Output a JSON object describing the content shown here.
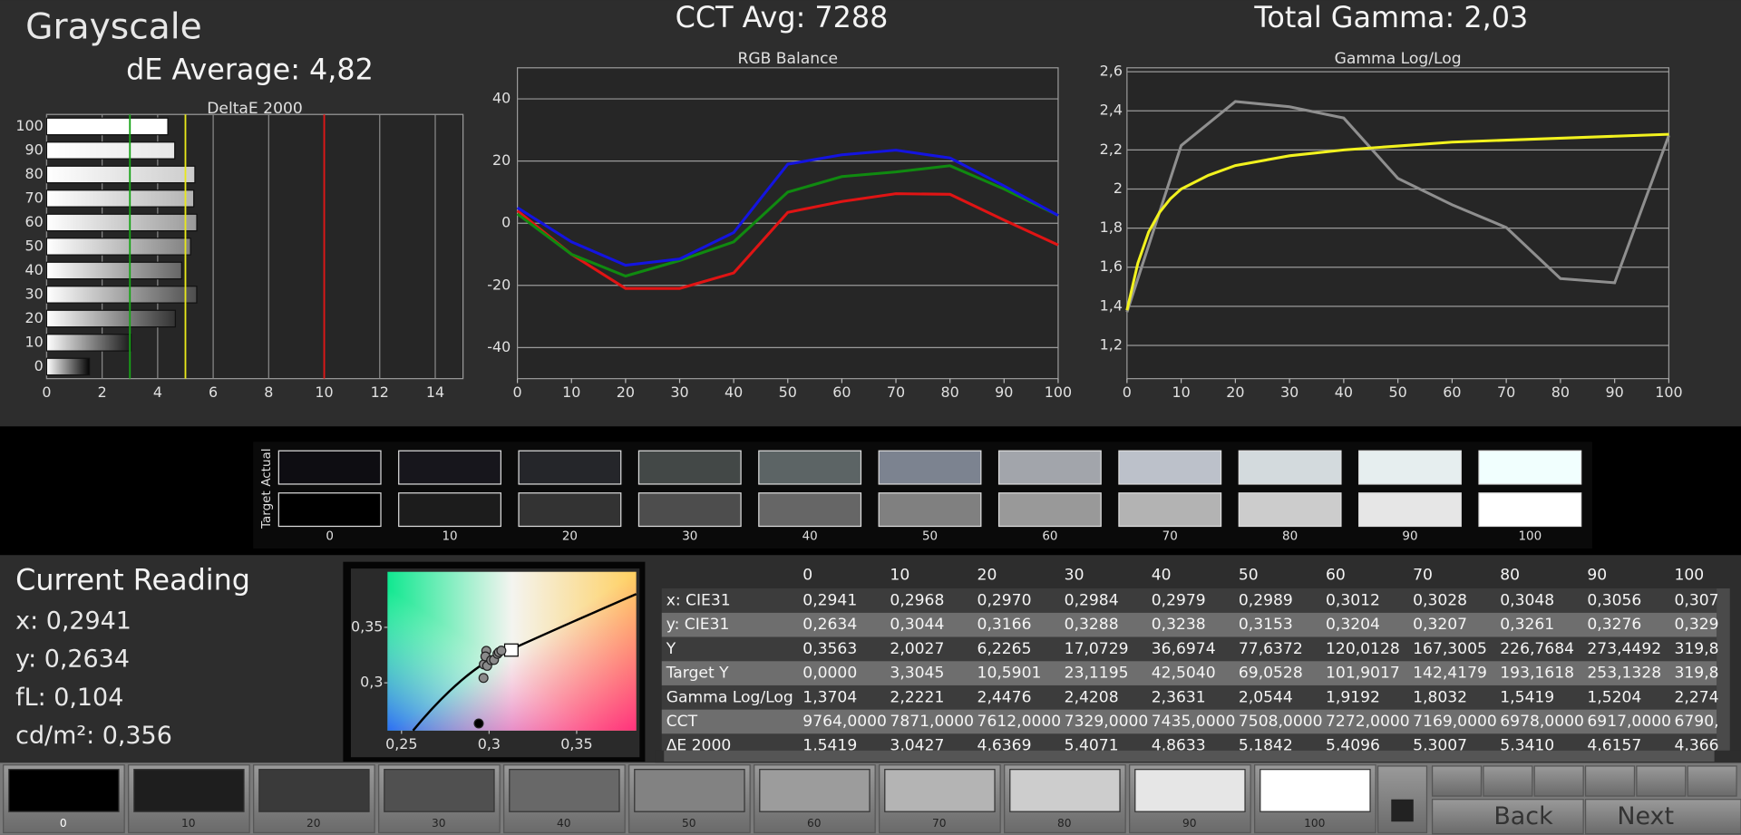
{
  "header": {
    "title": "Grayscale",
    "de_average": "dE Average: 4,82",
    "cct_avg": "CCT Avg: 7288",
    "total_gamma": "Total Gamma: 2,03"
  },
  "chart_data": [
    {
      "type": "bar",
      "orientation": "horizontal",
      "title": "DeltaE 2000",
      "categories": [
        "0",
        "10",
        "20",
        "30",
        "40",
        "50",
        "60",
        "70",
        "80",
        "90",
        "100"
      ],
      "values": [
        1.5419,
        3.0427,
        4.6369,
        5.4071,
        4.8633,
        5.1842,
        5.4096,
        5.3007,
        5.341,
        4.6157,
        4.366
      ],
      "colors": [
        "#050505",
        "#1a1a1a",
        "#333333",
        "#4d4d4d",
        "#666666",
        "#808080",
        "#999999",
        "#b3b3b3",
        "#cccccc",
        "#e6e6e6",
        "#ffffff"
      ],
      "xlim": [
        0,
        15
      ],
      "xticks": [
        0,
        2,
        4,
        6,
        8,
        10,
        12,
        14
      ],
      "reference_lines": [
        {
          "value": 3,
          "color": "#17a317"
        },
        {
          "value": 5,
          "color": "#e8e81a"
        },
        {
          "value": 10,
          "color": "#e01616"
        }
      ],
      "grid": true
    },
    {
      "type": "line",
      "title": "RGB Balance",
      "x": [
        0,
        10,
        20,
        30,
        40,
        50,
        60,
        70,
        80,
        90,
        100
      ],
      "series": [
        {
          "color": "#e01414",
          "values": [
            4,
            -10,
            -21,
            -21,
            -16,
            3.5,
            7,
            9.5,
            9.3,
            1,
            -7
          ]
        },
        {
          "color": "#108a10",
          "values": [
            3,
            -10,
            -17,
            -12,
            -6,
            10,
            15,
            16.5,
            18.5,
            11,
            2.5
          ]
        },
        {
          "color": "#1414e0",
          "values": [
            5,
            -6,
            -13.5,
            -11.5,
            -3,
            19,
            22,
            23.5,
            21,
            12,
            2.5
          ]
        }
      ],
      "xlim": [
        0,
        100
      ],
      "xticks": [
        0,
        10,
        20,
        30,
        40,
        50,
        60,
        70,
        80,
        90,
        100
      ],
      "ylim": [
        -50,
        50
      ],
      "yticks": [
        -40,
        -20,
        0,
        20,
        40
      ],
      "grid": true
    },
    {
      "type": "line",
      "title": "Gamma Log/Log",
      "x": [
        0,
        10,
        20,
        30,
        40,
        50,
        60,
        70,
        80,
        90,
        100
      ],
      "series": [
        {
          "color": "#8f8f8f",
          "values": [
            1.3704,
            2.2221,
            2.4476,
            2.4208,
            2.3631,
            2.0544,
            1.9192,
            1.8032,
            1.5419,
            1.5204,
            2.274
          ]
        },
        {
          "color": "#f2f21e",
          "x": [
            0,
            2,
            4,
            6,
            8,
            10,
            15,
            20,
            30,
            40,
            50,
            60,
            70,
            80,
            90,
            100
          ],
          "values": [
            1.38,
            1.62,
            1.78,
            1.88,
            1.95,
            2.0,
            2.07,
            2.12,
            2.17,
            2.2,
            2.22,
            2.24,
            2.25,
            2.26,
            2.27,
            2.28
          ]
        }
      ],
      "xlim": [
        0,
        100
      ],
      "xticks": [
        0,
        10,
        20,
        30,
        40,
        50,
        60,
        70,
        80,
        90,
        100
      ],
      "ylim": [
        1.03,
        2.62
      ],
      "yticks": [
        {
          "value": 1.2,
          "label": "1,2"
        },
        {
          "value": 1.4,
          "label": "1,4"
        },
        {
          "value": 1.6,
          "label": "1,6"
        },
        {
          "value": 1.8,
          "label": "1,8"
        },
        2,
        {
          "value": 2.2,
          "label": "2,2"
        },
        {
          "value": 2.4,
          "label": "2,4"
        },
        {
          "value": 2.6,
          "label": "2,6"
        }
      ],
      "grid": true
    },
    {
      "type": "scatter",
      "x": [
        0.2941,
        0.2968,
        0.297,
        0.2984,
        0.2979,
        0.2989,
        0.3012,
        0.3028,
        0.3048,
        0.3056,
        0.307
      ],
      "values": [
        0.2634,
        0.3044,
        0.3166,
        0.3288,
        0.3238,
        0.3153,
        0.3204,
        0.3207,
        0.3261,
        0.3276,
        0.329
      ],
      "xlim": [
        0.242,
        0.384
      ],
      "ylim": [
        0.257,
        0.4
      ],
      "xticks": [
        {
          "value": 0.25,
          "label": "0,25"
        },
        {
          "value": 0.3,
          "label": "0,3"
        },
        {
          "value": 0.35,
          "label": "0,35"
        }
      ],
      "yticks": [
        {
          "value": 0.3,
          "label": "0,3"
        },
        {
          "value": 0.35,
          "label": "0,35"
        }
      ]
    }
  ],
  "swatches": {
    "actual_label": "Actual",
    "target_label": "Target",
    "levels": [
      "0",
      "10",
      "20",
      "30",
      "40",
      "50",
      "60",
      "70",
      "80",
      "90",
      "100"
    ],
    "actual_colors": [
      "#0e0d12",
      "#17161c",
      "#25262a",
      "#434847",
      "#5c6465",
      "#7c8390",
      "#a2a5ab",
      "#bcc1ca",
      "#d3dadd",
      "#e6eeef",
      "#f1fffe"
    ],
    "target_colors": [
      "#000000",
      "#1c1c1c",
      "#333333",
      "#4d4d4d",
      "#666666",
      "#808080",
      "#999999",
      "#b3b3b3",
      "#cccccc",
      "#e6e6e6",
      "#ffffff"
    ]
  },
  "reading": {
    "title": "Current Reading",
    "lines": [
      "x: 0,2941",
      "y: 0,2634",
      "fL: 0,104",
      "cd/m²: 0,356"
    ]
  },
  "table": {
    "header": [
      "0",
      "10",
      "20",
      "30",
      "40",
      "50",
      "60",
      "70",
      "80",
      "90",
      "100"
    ],
    "rows": [
      [
        "x: CIE31",
        "0,2941",
        "0,2968",
        "0,2970",
        "0,2984",
        "0,2979",
        "0,2989",
        "0,3012",
        "0,3028",
        "0,3048",
        "0,3056",
        "0,307"
      ],
      [
        "y: CIE31",
        "0,2634",
        "0,3044",
        "0,3166",
        "0,3288",
        "0,3238",
        "0,3153",
        "0,3204",
        "0,3207",
        "0,3261",
        "0,3276",
        "0,329"
      ],
      [
        "Y",
        "0,3563",
        "2,0027",
        "6,2265",
        "17,0729",
        "36,6974",
        "77,6372",
        "120,0128",
        "167,3005",
        "226,7684",
        "273,4492",
        "319,8"
      ],
      [
        "Target Y",
        "0,0000",
        "3,3045",
        "10,5901",
        "23,1195",
        "42,5040",
        "69,0528",
        "101,9017",
        "142,4179",
        "193,1618",
        "253,1328",
        "319,8"
      ],
      [
        "Gamma Log/Log",
        "1,3704",
        "2,2221",
        "2,4476",
        "2,4208",
        "2,3631",
        "2,0544",
        "1,9192",
        "1,8032",
        "1,5419",
        "1,5204",
        "2,274"
      ],
      [
        "CCT",
        "9764,0000",
        "7871,0000",
        "7612,0000",
        "7329,0000",
        "7435,0000",
        "7508,0000",
        "7272,0000",
        "7169,0000",
        "6978,0000",
        "6917,0000",
        "6790,"
      ],
      [
        "ΔE 2000",
        "1,5419",
        "3,0427",
        "4,6369",
        "5,4071",
        "4,8633",
        "5,1842",
        "5,4096",
        "5,3007",
        "5,3410",
        "4,6157",
        "4,366"
      ]
    ]
  },
  "bottom_bar": {
    "levels": [
      "0",
      "10",
      "20",
      "30",
      "40",
      "50",
      "60",
      "70",
      "80",
      "90",
      "100"
    ],
    "colors": [
      "#000000",
      "#1e1e1e",
      "#3a3a3a",
      "#505050",
      "#686868",
      "#828282",
      "#9c9c9c",
      "#b4b4b4",
      "#cdcdcd",
      "#e6e6e6",
      "#ffffff"
    ],
    "back": "Back",
    "next": "Next"
  }
}
